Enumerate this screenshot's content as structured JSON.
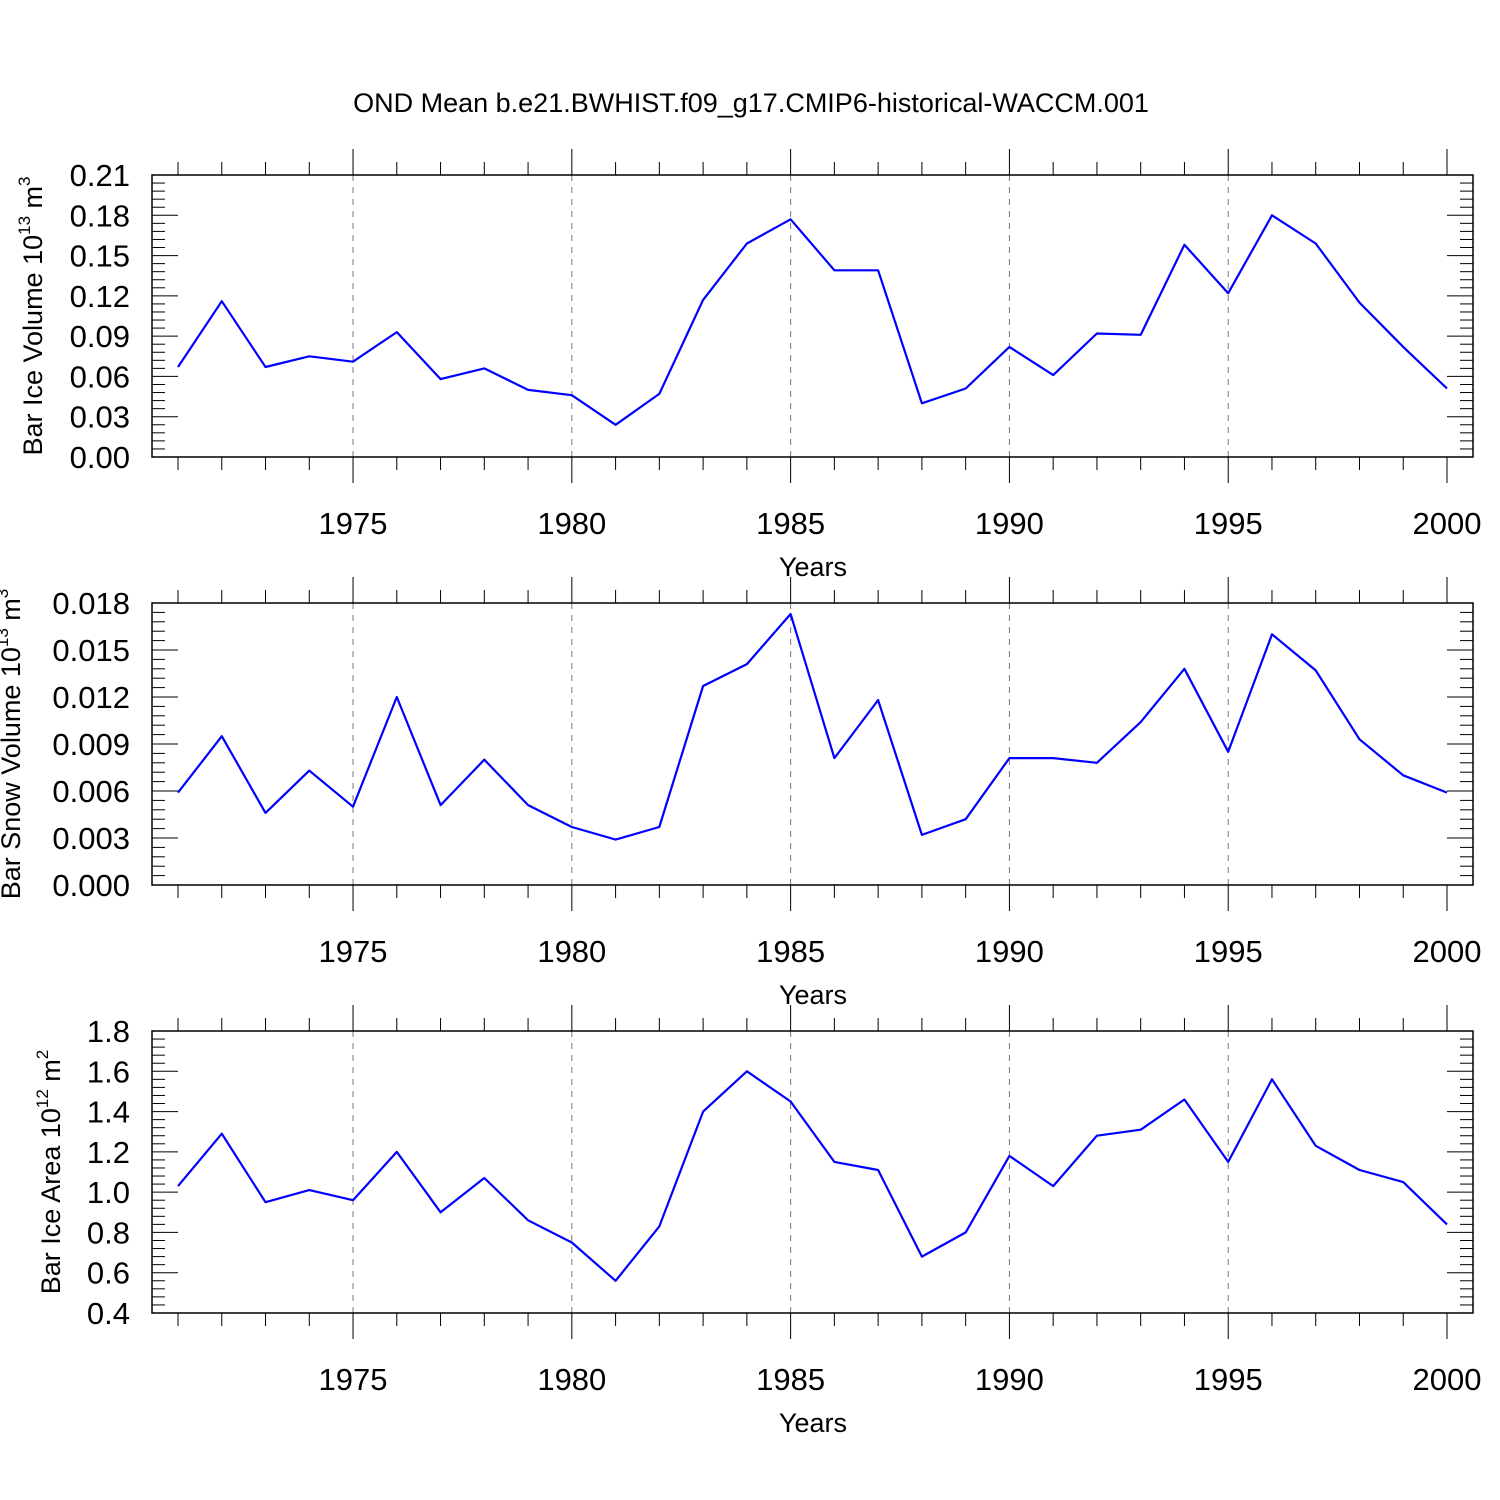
{
  "figure_title": "OND Mean b.e21.BWHIST.f09_g17.CMIP6-historical-WACCM.001",
  "chart_data": [
    {
      "type": "line",
      "xlabel": "Years",
      "ylabel": {
        "text": "Bar Ice Volume 10",
        "exp": "13",
        "unit": " m",
        "unit_exp": "3"
      },
      "xlim": [
        1971,
        2000
      ],
      "ylim": [
        0,
        0.21
      ],
      "xticks": [
        1975,
        1980,
        1985,
        1990,
        1995,
        2000
      ],
      "xtick_labels": [
        "1975",
        "1980",
        "1985",
        "1990",
        "1995",
        "2000"
      ],
      "yticks": [
        0,
        0.03,
        0.06,
        0.09,
        0.12,
        0.15,
        0.18,
        0.21
      ],
      "ytick_labels": [
        "0.00",
        "0.03",
        "0.06",
        "0.09",
        "0.12",
        "0.15",
        "0.18",
        "0.21"
      ],
      "grid": "dashed vertical lines at major x ticks",
      "color": "#0000ff",
      "x": [
        1971,
        1972,
        1973,
        1974,
        1975,
        1976,
        1977,
        1978,
        1979,
        1980,
        1981,
        1982,
        1983,
        1984,
        1985,
        1986,
        1987,
        1988,
        1989,
        1990,
        1991,
        1992,
        1993,
        1994,
        1995,
        1996,
        1997,
        1998,
        1999,
        2000
      ],
      "values": [
        0.067,
        0.116,
        0.067,
        0.075,
        0.071,
        0.093,
        0.058,
        0.066,
        0.05,
        0.046,
        0.024,
        0.047,
        0.117,
        0.159,
        0.177,
        0.139,
        0.139,
        0.04,
        0.051,
        0.082,
        0.061,
        0.092,
        0.091,
        0.158,
        0.122,
        0.18,
        0.159,
        0.115,
        0.082,
        0.051
      ]
    },
    {
      "type": "line",
      "xlabel": "Years",
      "ylabel": {
        "text": "Bar Snow Volume 10",
        "exp": "13",
        "unit": " m",
        "unit_exp": "3"
      },
      "xlim": [
        1971,
        2000
      ],
      "ylim": [
        0,
        0.018
      ],
      "xticks": [
        1975,
        1980,
        1985,
        1990,
        1995,
        2000
      ],
      "xtick_labels": [
        "1975",
        "1980",
        "1985",
        "1990",
        "1995",
        "2000"
      ],
      "yticks": [
        0,
        0.003,
        0.006,
        0.009,
        0.012,
        0.015,
        0.018
      ],
      "ytick_labels": [
        "0.000",
        "0.003",
        "0.006",
        "0.009",
        "0.012",
        "0.015",
        "0.018"
      ],
      "grid": "dashed vertical lines at major x ticks",
      "color": "#0000ff",
      "x": [
        1971,
        1972,
        1973,
        1974,
        1975,
        1976,
        1977,
        1978,
        1979,
        1980,
        1981,
        1982,
        1983,
        1984,
        1985,
        1986,
        1987,
        1988,
        1989,
        1990,
        1991,
        1992,
        1993,
        1994,
        1995,
        1996,
        1997,
        1998,
        1999,
        2000
      ],
      "values": [
        0.0059,
        0.0095,
        0.0046,
        0.0073,
        0.005,
        0.012,
        0.0051,
        0.008,
        0.0051,
        0.0037,
        0.0029,
        0.0037,
        0.0127,
        0.0141,
        0.0173,
        0.0081,
        0.0118,
        0.0032,
        0.0042,
        0.0081,
        0.0081,
        0.0078,
        0.0104,
        0.0138,
        0.0085,
        0.016,
        0.0137,
        0.0093,
        0.007,
        0.0059
      ]
    },
    {
      "type": "line",
      "xlabel": "Years",
      "ylabel": {
        "text": "Bar Ice Area 10",
        "exp": "12",
        "unit": " m",
        "unit_exp": "2"
      },
      "xlim": [
        1971,
        2000
      ],
      "ylim": [
        0.4,
        1.8
      ],
      "xticks": [
        1975,
        1980,
        1985,
        1990,
        1995,
        2000
      ],
      "xtick_labels": [
        "1975",
        "1980",
        "1985",
        "1990",
        "1995",
        "2000"
      ],
      "yticks": [
        0.4,
        0.6,
        0.8,
        1.0,
        1.2,
        1.4,
        1.6,
        1.8
      ],
      "ytick_labels": [
        "0.4",
        "0.6",
        "0.8",
        "1.0",
        "1.2",
        "1.4",
        "1.6",
        "1.8"
      ],
      "grid": "dashed vertical lines at major x ticks",
      "color": "#0000ff",
      "x": [
        1971,
        1972,
        1973,
        1974,
        1975,
        1976,
        1977,
        1978,
        1979,
        1980,
        1981,
        1982,
        1983,
        1984,
        1985,
        1986,
        1987,
        1988,
        1989,
        1990,
        1991,
        1992,
        1993,
        1994,
        1995,
        1996,
        1997,
        1998,
        1999,
        2000
      ],
      "values": [
        1.03,
        1.29,
        0.95,
        1.01,
        0.96,
        1.2,
        0.9,
        1.07,
        0.86,
        0.75,
        0.56,
        0.83,
        1.4,
        1.6,
        1.45,
        1.15,
        1.11,
        0.68,
        0.8,
        1.18,
        1.03,
        1.28,
        1.31,
        1.46,
        1.15,
        1.56,
        1.23,
        1.11,
        1.05,
        0.84
      ]
    }
  ]
}
